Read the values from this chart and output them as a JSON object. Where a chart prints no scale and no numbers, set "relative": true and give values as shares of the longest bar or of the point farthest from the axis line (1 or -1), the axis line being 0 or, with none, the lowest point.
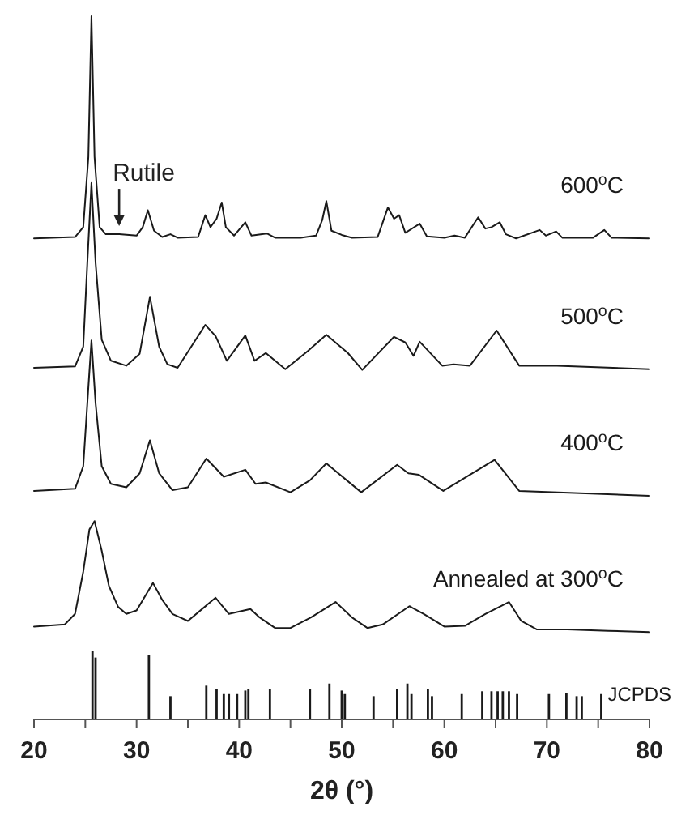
{
  "chart_data": {
    "type": "line",
    "relative": true,
    "xlabel": "2θ (°)",
    "xlim": [
      20,
      80
    ],
    "xticks": [
      20,
      {
        "value": 25,
        "label": null
      },
      30,
      {
        "value": 35,
        "label": null
      },
      40,
      {
        "value": 45,
        "label": null
      },
      50,
      {
        "value": 55,
        "label": null
      },
      60,
      {
        "value": 65,
        "label": null
      },
      70,
      {
        "value": 75,
        "label": null
      },
      80
    ],
    "marker": "none",
    "line_style": "solid",
    "annotations": [
      {
        "text": "Rutile",
        "x": 28.3,
        "y": 0.69
      }
    ],
    "series": [
      {
        "name": "600$^{o}$C",
        "color": "#1a1a1a",
        "x": [
          20,
          24,
          24.8,
          25.3,
          25.6,
          25.9,
          26.4,
          27,
          28.3,
          30,
          30.6,
          31.1,
          31.7,
          32.5,
          33.3,
          34,
          36,
          36.7,
          37.2,
          37.8,
          38.3,
          38.7,
          39.5,
          40.6,
          41.2,
          42.7,
          43.5,
          46,
          47.5,
          48.1,
          48.5,
          49,
          50,
          51,
          53.5,
          54.5,
          55.1,
          55.6,
          56.2,
          57.6,
          58.3,
          60,
          61,
          62,
          63.3,
          64,
          64.6,
          65.4,
          66,
          67,
          69.3,
          69.9,
          70.9,
          71.5,
          74.5,
          75.6,
          76.3,
          80
        ],
        "values": [
          0.684,
          0.686,
          0.7,
          0.8,
          1,
          0.8,
          0.7,
          0.69,
          0.69,
          0.688,
          0.7,
          0.724,
          0.695,
          0.686,
          0.69,
          0.685,
          0.686,
          0.717,
          0.7,
          0.712,
          0.735,
          0.7,
          0.688,
          0.707,
          0.688,
          0.691,
          0.685,
          0.685,
          0.688,
          0.71,
          0.737,
          0.695,
          0.689,
          0.685,
          0.686,
          0.728,
          0.712,
          0.717,
          0.692,
          0.705,
          0.687,
          0.685,
          0.688,
          0.685,
          0.714,
          0.698,
          0.7,
          0.707,
          0.69,
          0.684,
          0.696,
          0.688,
          0.694,
          0.685,
          0.685,
          0.696,
          0.685,
          0.684
        ]
      },
      {
        "name": "500$^{o}$C",
        "color": "#1a1a1a",
        "x": [
          20,
          24,
          24.8,
          25.2,
          25.6,
          26,
          26.6,
          27.5,
          29,
          30.3,
          31.3,
          32.2,
          33,
          34,
          36.7,
          37.7,
          38.8,
          40.6,
          41.5,
          42.6,
          44.5,
          46.7,
          48.5,
          50.6,
          52,
          55.1,
          56.2,
          57,
          57.6,
          59.8,
          60.9,
          62.5,
          65.1,
          67.3,
          71,
          80
        ],
        "values": [
          0.5,
          0.502,
          0.53,
          0.65,
          0.763,
          0.65,
          0.54,
          0.51,
          0.503,
          0.52,
          0.601,
          0.53,
          0.505,
          0.5,
          0.561,
          0.545,
          0.51,
          0.546,
          0.51,
          0.521,
          0.498,
          0.524,
          0.547,
          0.521,
          0.497,
          0.544,
          0.536,
          0.517,
          0.537,
          0.503,
          0.505,
          0.503,
          0.553,
          0.503,
          0.503,
          0.498
        ]
      },
      {
        "name": "400$^{o}$C",
        "color": "#1a1a1a",
        "x": [
          20,
          24,
          24.8,
          25.2,
          25.6,
          26,
          26.6,
          27.5,
          29,
          30.3,
          31.3,
          32.2,
          33.5,
          35,
          36.8,
          38.5,
          40.6,
          41.6,
          42.6,
          45,
          46.9,
          48.5,
          51.9,
          55.4,
          56.5,
          57.5,
          59.9,
          64.9,
          67.3,
          80
        ],
        "values": [
          0.325,
          0.328,
          0.36,
          0.45,
          0.539,
          0.45,
          0.36,
          0.335,
          0.33,
          0.35,
          0.397,
          0.35,
          0.326,
          0.33,
          0.371,
          0.345,
          0.355,
          0.335,
          0.337,
          0.323,
          0.34,
          0.364,
          0.323,
          0.362,
          0.35,
          0.348,
          0.325,
          0.369,
          0.325,
          0.318
        ]
      },
      {
        "name": "Annealed at 300$^{o}$C",
        "color": "#1a1a1a",
        "x": [
          20,
          23,
          24,
          24.8,
          25.4,
          25.9,
          26.6,
          27.3,
          28.2,
          29,
          30,
          31.6,
          32.5,
          33.5,
          35,
          37.7,
          39,
          41.1,
          42,
          43.5,
          45,
          47,
          49.4,
          51,
          52.5,
          54,
          56.6,
          58,
          60,
          62,
          64,
          66.3,
          67.5,
          69,
          72,
          76,
          80
        ],
        "values": [
          0.132,
          0.135,
          0.15,
          0.21,
          0.27,
          0.282,
          0.24,
          0.19,
          0.16,
          0.15,
          0.155,
          0.194,
          0.17,
          0.15,
          0.14,
          0.173,
          0.15,
          0.157,
          0.145,
          0.13,
          0.13,
          0.145,
          0.167,
          0.145,
          0.13,
          0.135,
          0.161,
          0.15,
          0.132,
          0.133,
          0.15,
          0.167,
          0.14,
          0.128,
          0.128,
          0.126,
          0.124
        ]
      },
      {
        "name": "JCPDS",
        "type": "bar",
        "color": "#1a1a1a",
        "x": [
          25.7,
          26,
          31.2,
          33.3,
          36.8,
          37.8,
          38.5,
          39,
          39.8,
          40.6,
          40.9,
          43,
          46.9,
          48.8,
          50,
          50.3,
          53.1,
          55.4,
          56.4,
          56.8,
          58.4,
          58.8,
          61.7,
          63.7,
          64.6,
          65.2,
          65.7,
          66.3,
          67.1,
          70.2,
          71.9,
          72.9,
          73.4,
          75.3
        ],
        "values": [
          0.097,
          0.088,
          0.091,
          0.033,
          0.048,
          0.043,
          0.036,
          0.036,
          0.036,
          0.041,
          0.043,
          0.043,
          0.043,
          0.051,
          0.041,
          0.036,
          0.033,
          0.043,
          0.051,
          0.036,
          0.043,
          0.033,
          0.036,
          0.04,
          0.04,
          0.04,
          0.04,
          0.04,
          0.036,
          0.036,
          0.038,
          0.033,
          0.033,
          0.036
        ]
      }
    ]
  }
}
